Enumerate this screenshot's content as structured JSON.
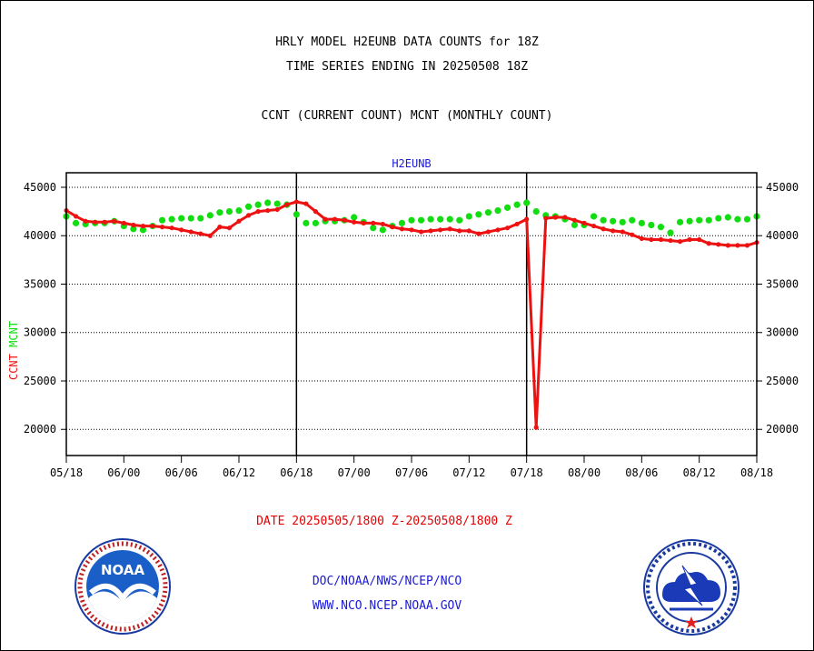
{
  "header": {
    "line1": "HRLY MODEL H2EUNB DATA COUNTS for 18Z",
    "line2": "TIME SERIES ENDING IN 20250508 18Z",
    "line3": "CCNT (CURRENT COUNT) MCNT (MONTHLY COUNT)"
  },
  "footer": {
    "date_range": "DATE 20250505/1800 Z-20250508/1800 Z",
    "credit1": "DOC/NOAA/NWS/NCEP/NCO",
    "credit2": "WWW.NCO.NCEP.NOAA.GOV"
  },
  "logos": {
    "noaa_text": "NOAA"
  },
  "colors": {
    "ccnt": "#ee1111",
    "mcnt": "#11dd11",
    "title": "#1a1ad8",
    "axis": "#000000"
  },
  "chart_data": {
    "type": "line",
    "title": "H2EUNB",
    "xlabel": "",
    "ylabel_parts": [
      "CCNT",
      "MCNT"
    ],
    "x_tick_labels": [
      "05/18",
      "06/00",
      "06/06",
      "06/12",
      "06/18",
      "07/00",
      "07/06",
      "07/12",
      "07/18",
      "08/00",
      "08/06",
      "08/12",
      "08/18"
    ],
    "y_ticks": [
      20000,
      25000,
      30000,
      35000,
      40000,
      45000
    ],
    "y_tick_labels": [
      "20000",
      "25000",
      "30000",
      "35000",
      "40000",
      "45000"
    ],
    "ylim": [
      17300,
      46500
    ],
    "xlim_hours": [
      0,
      72
    ],
    "grid": "horizontal dotted",
    "day_separators_at_hours": [
      24,
      48
    ],
    "series": [
      {
        "name": "CCNT",
        "color": "#ee1111",
        "x": [
          0,
          1,
          2,
          3,
          4,
          5,
          6,
          7,
          8,
          9,
          10,
          11,
          12,
          13,
          14,
          15,
          16,
          17,
          18,
          19,
          20,
          21,
          22,
          23,
          24,
          25,
          26,
          27,
          28,
          29,
          30,
          31,
          32,
          33,
          34,
          35,
          36,
          37,
          38,
          39,
          40,
          41,
          42,
          43,
          44,
          45,
          46,
          47,
          48,
          49,
          50,
          51,
          52,
          53,
          54,
          55,
          56,
          57,
          58,
          59,
          60,
          61,
          62,
          63,
          64,
          65,
          66,
          67,
          68,
          69,
          70,
          71,
          72
        ],
        "values": [
          42600,
          42000,
          41500,
          41400,
          41400,
          41500,
          41300,
          41100,
          41000,
          41000,
          40900,
          40800,
          40600,
          40400,
          40200,
          40000,
          40900,
          40800,
          41500,
          42100,
          42500,
          42600,
          42700,
          43200,
          43500,
          43300,
          42500,
          41700,
          41700,
          41600,
          41400,
          41300,
          41300,
          41200,
          40900,
          40700,
          40600,
          40400,
          40500,
          40600,
          40700,
          40500,
          40500,
          40200,
          40400,
          40600,
          40800,
          41200,
          41700,
          20200,
          41800,
          41900,
          41900,
          41600,
          41300,
          41000,
          40700,
          40500,
          40400,
          40100,
          39700,
          39600,
          39600,
          39500,
          39400,
          39600,
          39600,
          39200,
          39100,
          39000,
          39000,
          39000,
          39300
        ]
      },
      {
        "name": "MCNT",
        "color": "#11dd11",
        "x": [
          0,
          1,
          2,
          3,
          4,
          5,
          6,
          7,
          8,
          9,
          10,
          11,
          12,
          13,
          14,
          15,
          16,
          17,
          18,
          19,
          20,
          21,
          22,
          23,
          24,
          25,
          26,
          27,
          28,
          29,
          30,
          31,
          32,
          33,
          34,
          35,
          36,
          37,
          38,
          39,
          40,
          41,
          42,
          43,
          44,
          45,
          46,
          47,
          48,
          49,
          50,
          51,
          52,
          53,
          54,
          55,
          56,
          57,
          58,
          59,
          60,
          61,
          62,
          63,
          64,
          65,
          66,
          67,
          68,
          69,
          70,
          71,
          72
        ],
        "values": [
          42000,
          41300,
          41200,
          41300,
          41300,
          41500,
          41000,
          40700,
          40600,
          41000,
          41600,
          41700,
          41800,
          41800,
          41800,
          42100,
          42400,
          42500,
          42600,
          43000,
          43200,
          43400,
          43300,
          43200,
          42200,
          41300,
          41300,
          41500,
          41500,
          41600,
          41900,
          41400,
          40800,
          40600,
          41000,
          41300,
          41600,
          41600,
          41700,
          41700,
          41700,
          41600,
          42000,
          42200,
          42400,
          42600,
          42900,
          43200,
          43400,
          42500,
          42100,
          42000,
          41700,
          41100,
          41100,
          42000,
          41600,
          41500,
          41400,
          41600,
          41300,
          41100,
          40900,
          40300,
          41400,
          41500,
          41600,
          41600,
          41800,
          41900,
          41700,
          41700,
          42000
        ]
      }
    ]
  }
}
